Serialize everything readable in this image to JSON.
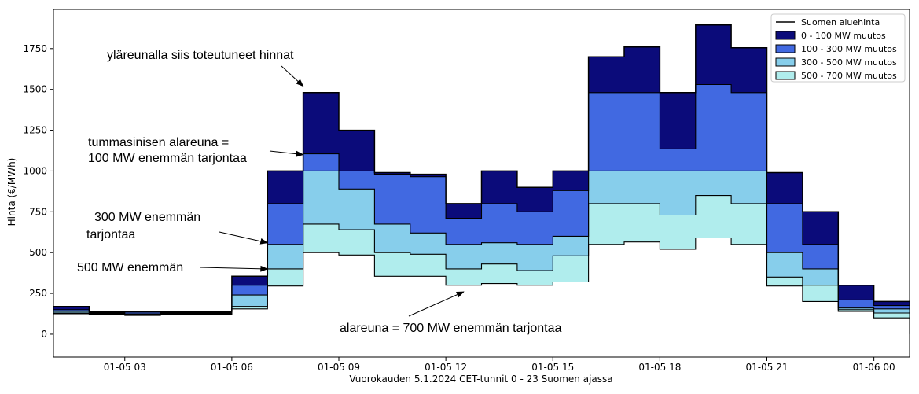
{
  "chart_data": {
    "type": "area",
    "step": "post",
    "xlabel": "Vuorokauden 5.1.2024 CET-tunnit 0 - 23 Suomen ajassa",
    "ylabel": "Hinta (€/MWh)",
    "x": [
      "2024-01-05 01:00",
      "2024-01-05 02:00",
      "2024-01-05 03:00",
      "2024-01-05 04:00",
      "2024-01-05 05:00",
      "2024-01-05 06:00",
      "2024-01-05 07:00",
      "2024-01-05 08:00",
      "2024-01-05 09:00",
      "2024-01-05 10:00",
      "2024-01-05 11:00",
      "2024-01-05 12:00",
      "2024-01-05 13:00",
      "2024-01-05 14:00",
      "2024-01-05 15:00",
      "2024-01-05 16:00",
      "2024-01-05 17:00",
      "2024-01-05 18:00",
      "2024-01-05 19:00",
      "2024-01-05 20:00",
      "2024-01-05 21:00",
      "2024-01-05 22:00",
      "2024-01-05 23:00",
      "2024-01-06 00:00"
    ],
    "xlim": [
      "2024-01-05 01:00",
      "2024-01-06 01:00"
    ],
    "ylim": [
      -140,
      1990
    ],
    "yticks": [
      0,
      250,
      500,
      750,
      1000,
      1250,
      1500,
      1750
    ],
    "xticks": [
      "01-05 03",
      "01-05 06",
      "01-05 09",
      "01-05 12",
      "01-05 15",
      "01-05 18",
      "01-05 21",
      "01-06 00"
    ],
    "legend_position": "top-right",
    "series": [
      {
        "name": "Suomen aluehinta",
        "type": "line",
        "color": "#000000",
        "values": [
          170,
          140,
          140,
          140,
          140,
          355,
          1000,
          1480,
          1250,
          990,
          980,
          800,
          1000,
          900,
          1000,
          1700,
          1760,
          1480,
          1895,
          1755,
          990,
          750,
          300,
          200
        ]
      },
      {
        "name": "0 - 100 MW muutos",
        "type": "area",
        "color": "#0b0b7a",
        "upper": "Suomen aluehinta",
        "values": [
          150,
          135,
          135,
          135,
          135,
          300,
          800,
          1105,
          1000,
          980,
          965,
          710,
          800,
          750,
          880,
          1480,
          1480,
          1135,
          1530,
          1480,
          800,
          550,
          210,
          175
        ]
      },
      {
        "name": "100 - 300 MW muutos",
        "type": "area",
        "color": "#4169e1",
        "upper": "0 - 100 MW muutos",
        "values": [
          140,
          130,
          125,
          130,
          130,
          240,
          550,
          1000,
          890,
          675,
          620,
          550,
          560,
          550,
          600,
          1000,
          1000,
          1000,
          1000,
          1000,
          500,
          400,
          160,
          155
        ]
      },
      {
        "name": "300 - 500 MW muutos",
        "type": "area",
        "color": "#87ceeb",
        "upper": "100 - 300 MW muutos",
        "values": [
          130,
          125,
          120,
          125,
          125,
          170,
          400,
          675,
          640,
          500,
          490,
          400,
          430,
          390,
          480,
          800,
          800,
          730,
          850,
          800,
          350,
          300,
          150,
          130
        ]
      },
      {
        "name": "500 - 700 MW muutos",
        "type": "area",
        "color": "#b0eded",
        "upper": "300 - 500 MW muutos",
        "values": [
          125,
          120,
          115,
          120,
          120,
          155,
          295,
          500,
          485,
          355,
          355,
          300,
          310,
          300,
          320,
          550,
          565,
          520,
          590,
          550,
          295,
          200,
          140,
          100
        ]
      }
    ],
    "final_drop_value": 0,
    "annotations": [
      {
        "text": "yläreunalla siis toteutuneet hinnat",
        "arrow_to": [
          "2024-01-05 08:00",
          1520
        ]
      },
      {
        "text": "tummasinisen alareuna =",
        "arrow_to": [
          "2024-01-05 08:00",
          1100
        ]
      },
      {
        "text": "100 MW enemmän tarjontaa"
      },
      {
        "text": "300 MW enemmän",
        "arrow_to": [
          "2024-01-05 07:00",
          560
        ]
      },
      {
        "text": "tarjontaa"
      },
      {
        "text": "500 MW enemmän",
        "arrow_to": [
          "2024-01-05 07:00",
          400
        ]
      },
      {
        "text": "alareuna = 700 MW enemmän tarjontaa",
        "arrow_to": [
          "2024-01-05 12:30",
          260
        ]
      }
    ]
  }
}
